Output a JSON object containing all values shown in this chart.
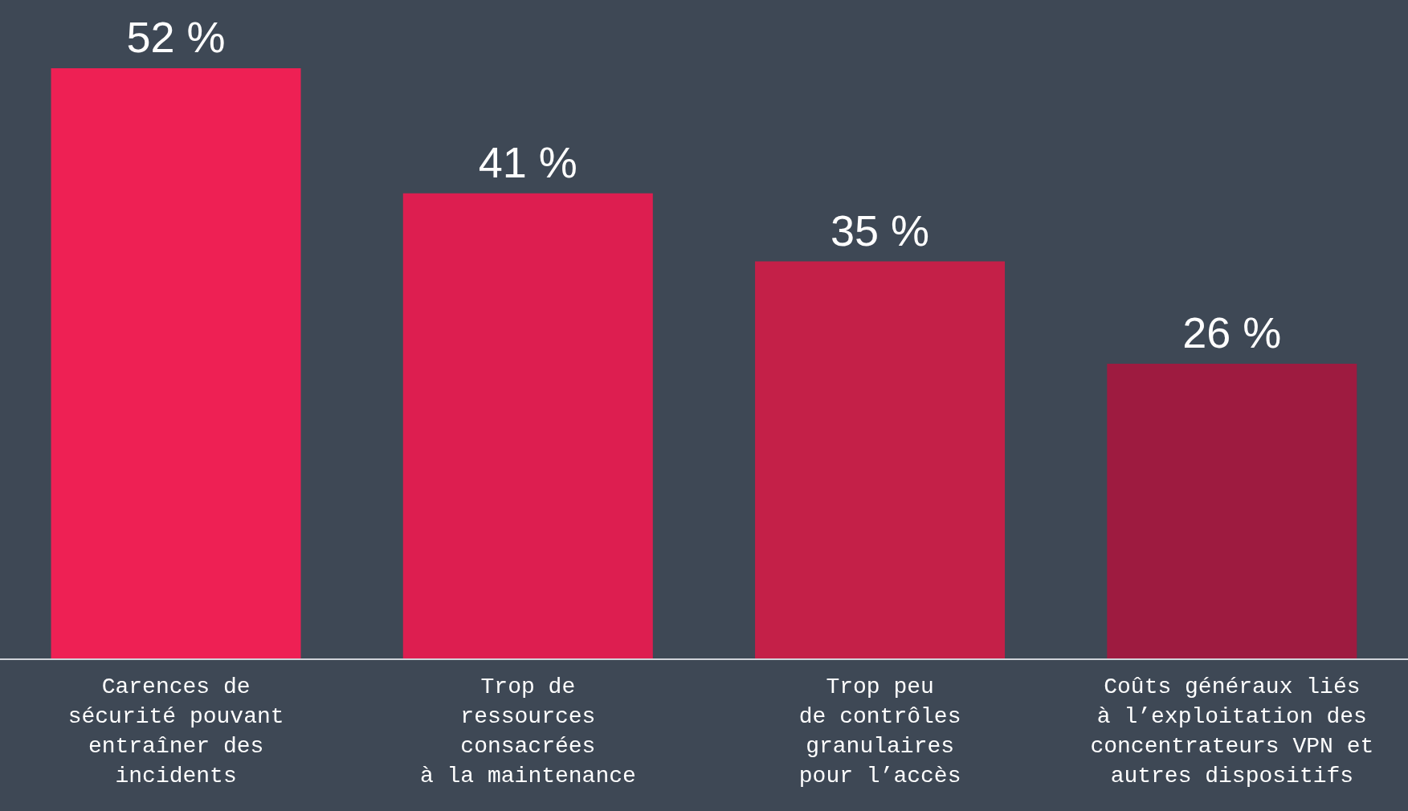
{
  "chart_data": {
    "type": "bar",
    "categories": [
      "Carences de\nsécurité pouvant\nentraîner des\nincidents",
      "Trop de\nressources\nconsacrées\nà la maintenance",
      "Trop peu\nde contrôles\ngranulaires\npour l’accès",
      "Coûts généraux liés\nà l’exploitation des\nconcentrateurs VPN et\nautres dispositifs"
    ],
    "values": [
      52,
      41,
      35,
      26
    ],
    "colors": [
      "#ee2054",
      "#dd1e50",
      "#c42048",
      "#9e1b40"
    ],
    "value_labels": [
      "52 %",
      "41 %",
      "35 %",
      "26 %"
    ],
    "grid": false,
    "legend": false
  }
}
